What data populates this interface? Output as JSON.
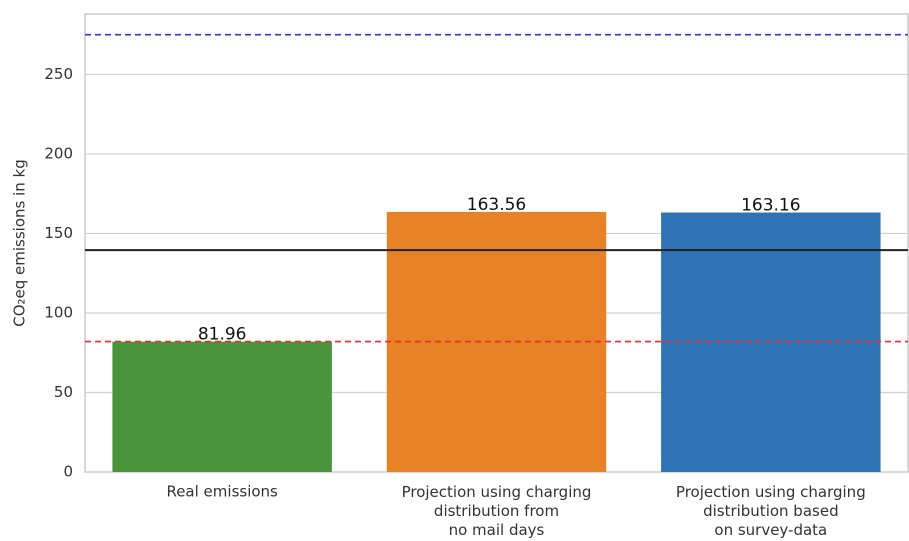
{
  "chart_data": {
    "type": "bar",
    "ylabel": "CO₂eq emissions in kg",
    "categories": [
      "Real emissions",
      "Projection using charging\ndistribution from\nno mail days",
      "Projection using charging\ndistribution based\non survey-data"
    ],
    "values": [
      81.96,
      163.56,
      163.16
    ],
    "colors": [
      "#4a943c",
      "#e88227",
      "#2e73b6"
    ],
    "ylim": [
      0,
      288
    ],
    "yticks": [
      0,
      50,
      100,
      150,
      200,
      250
    ],
    "grid": true,
    "hlines": [
      {
        "value": 275,
        "color": "#3535d0",
        "style": "dashed"
      },
      {
        "value": 139.5,
        "color": "#222222",
        "style": "solid"
      },
      {
        "value": 82,
        "color": "#ee2a2a",
        "style": "dashed"
      }
    ]
  }
}
